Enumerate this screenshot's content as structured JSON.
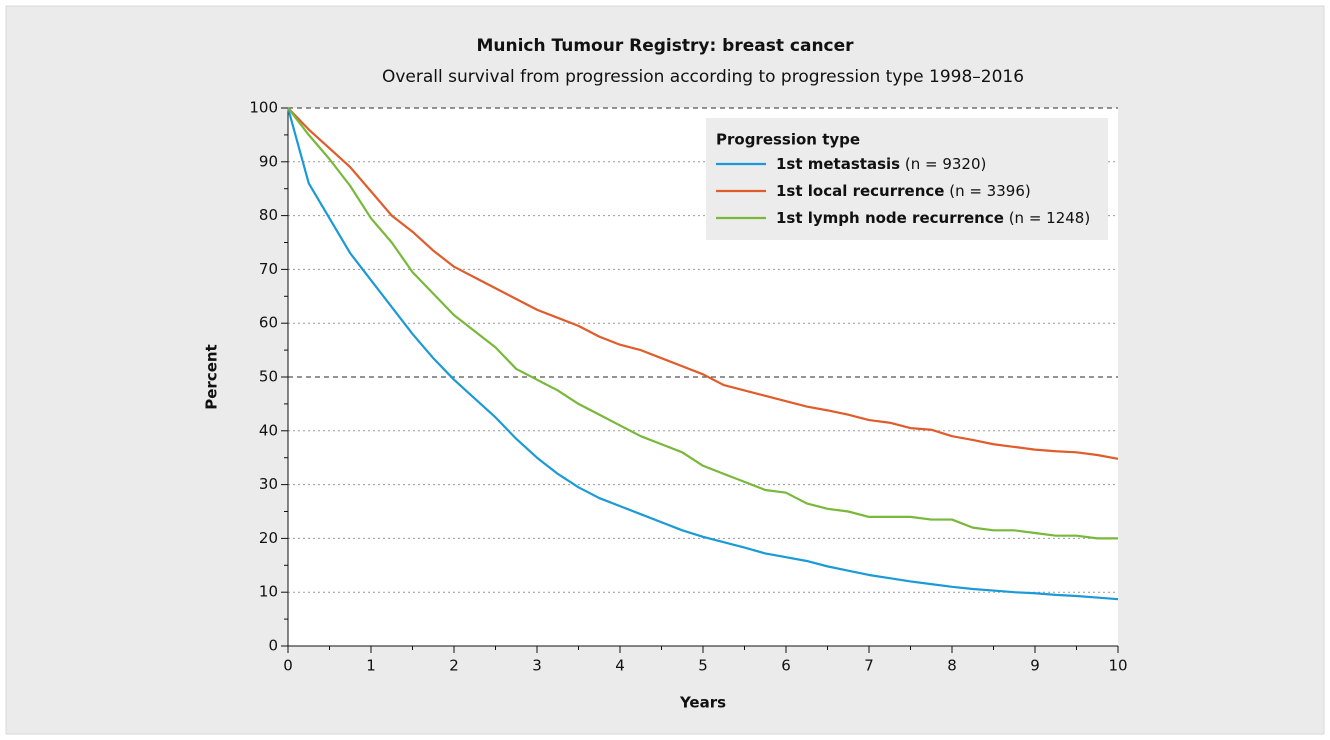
{
  "chart_data": {
    "type": "line",
    "title": "Munich Tumour Registry: breast cancer",
    "subtitle": "Overall survival from progression according to progression type 1998–2016",
    "x_label": "Years",
    "y_label": "Percent",
    "legend_title": "Progression type",
    "legend_position": "upper right",
    "xlim": [
      0,
      10
    ],
    "ylim": [
      0,
      100
    ],
    "xticks": [
      0,
      1,
      2,
      3,
      4,
      5,
      6,
      7,
      8,
      9,
      10
    ],
    "yticks": [
      0,
      10,
      20,
      30,
      40,
      50,
      60,
      70,
      80,
      90,
      100
    ],
    "xminorticks": [
      0.5,
      1.5,
      2.5,
      3.5,
      4.5,
      5.5,
      6.5,
      7.5,
      8.5,
      9.5
    ],
    "yminorticks": [
      5,
      15,
      25,
      35,
      45,
      55,
      65,
      75,
      85,
      95
    ],
    "reference_lines": [
      100,
      50
    ],
    "grid": true,
    "x": [
      0,
      0.25,
      0.5,
      0.75,
      1,
      1.25,
      1.5,
      1.75,
      2,
      2.25,
      2.5,
      2.75,
      3,
      3.25,
      3.5,
      3.75,
      4,
      4.25,
      4.5,
      4.75,
      5,
      5.25,
      5.5,
      5.75,
      6,
      6.25,
      6.5,
      6.75,
      7,
      7.25,
      7.5,
      7.75,
      8,
      8.25,
      8.5,
      8.75,
      9,
      9.25,
      9.5,
      9.75,
      10
    ],
    "series": [
      {
        "name": "1st metastasis",
        "note": "(n = 9320)",
        "color": "#1a9ad6",
        "values": [
          100,
          86,
          79.5,
          73,
          68,
          63,
          58,
          53.5,
          49.5,
          46,
          42.5,
          38.5,
          35,
          32,
          29.5,
          27.5,
          26,
          24.5,
          23,
          21.5,
          20.3,
          19.3,
          18.3,
          17.2,
          16.5,
          15.8,
          14.8,
          14,
          13.2,
          12.6,
          12,
          11.5,
          11,
          10.6,
          10.3,
          10,
          9.8,
          9.5,
          9.3,
          9,
          8.7
        ]
      },
      {
        "name": "1st local recurrence",
        "note": "(n = 3396)",
        "color": "#e05c2a",
        "values": [
          100,
          96,
          92.5,
          89,
          84.5,
          80,
          77,
          73.5,
          70.5,
          68.5,
          66.5,
          64.5,
          62.5,
          61,
          59.5,
          57.5,
          56,
          55,
          53.5,
          52,
          50.5,
          48.5,
          47.5,
          46.5,
          45.5,
          44.5,
          43.8,
          43,
          42,
          41.5,
          40.5,
          40.2,
          39,
          38.3,
          37.5,
          37,
          36.5,
          36.2,
          36,
          35.5,
          34.8
        ]
      },
      {
        "name": "1st lymph node recurrence",
        "note": "(n = 1248)",
        "color": "#78b83a",
        "values": [
          100,
          95,
          90.5,
          85.5,
          79.5,
          75,
          69.5,
          65.5,
          61.5,
          58.5,
          55.5,
          51.5,
          49.5,
          47.5,
          45,
          43,
          41,
          39,
          37.5,
          36,
          33.5,
          32,
          30.5,
          29,
          28.5,
          26.5,
          25.5,
          25,
          24,
          24,
          24,
          23.5,
          23.5,
          22,
          21.5,
          21.5,
          21,
          20.5,
          20.5,
          20,
          20
        ]
      }
    ]
  }
}
